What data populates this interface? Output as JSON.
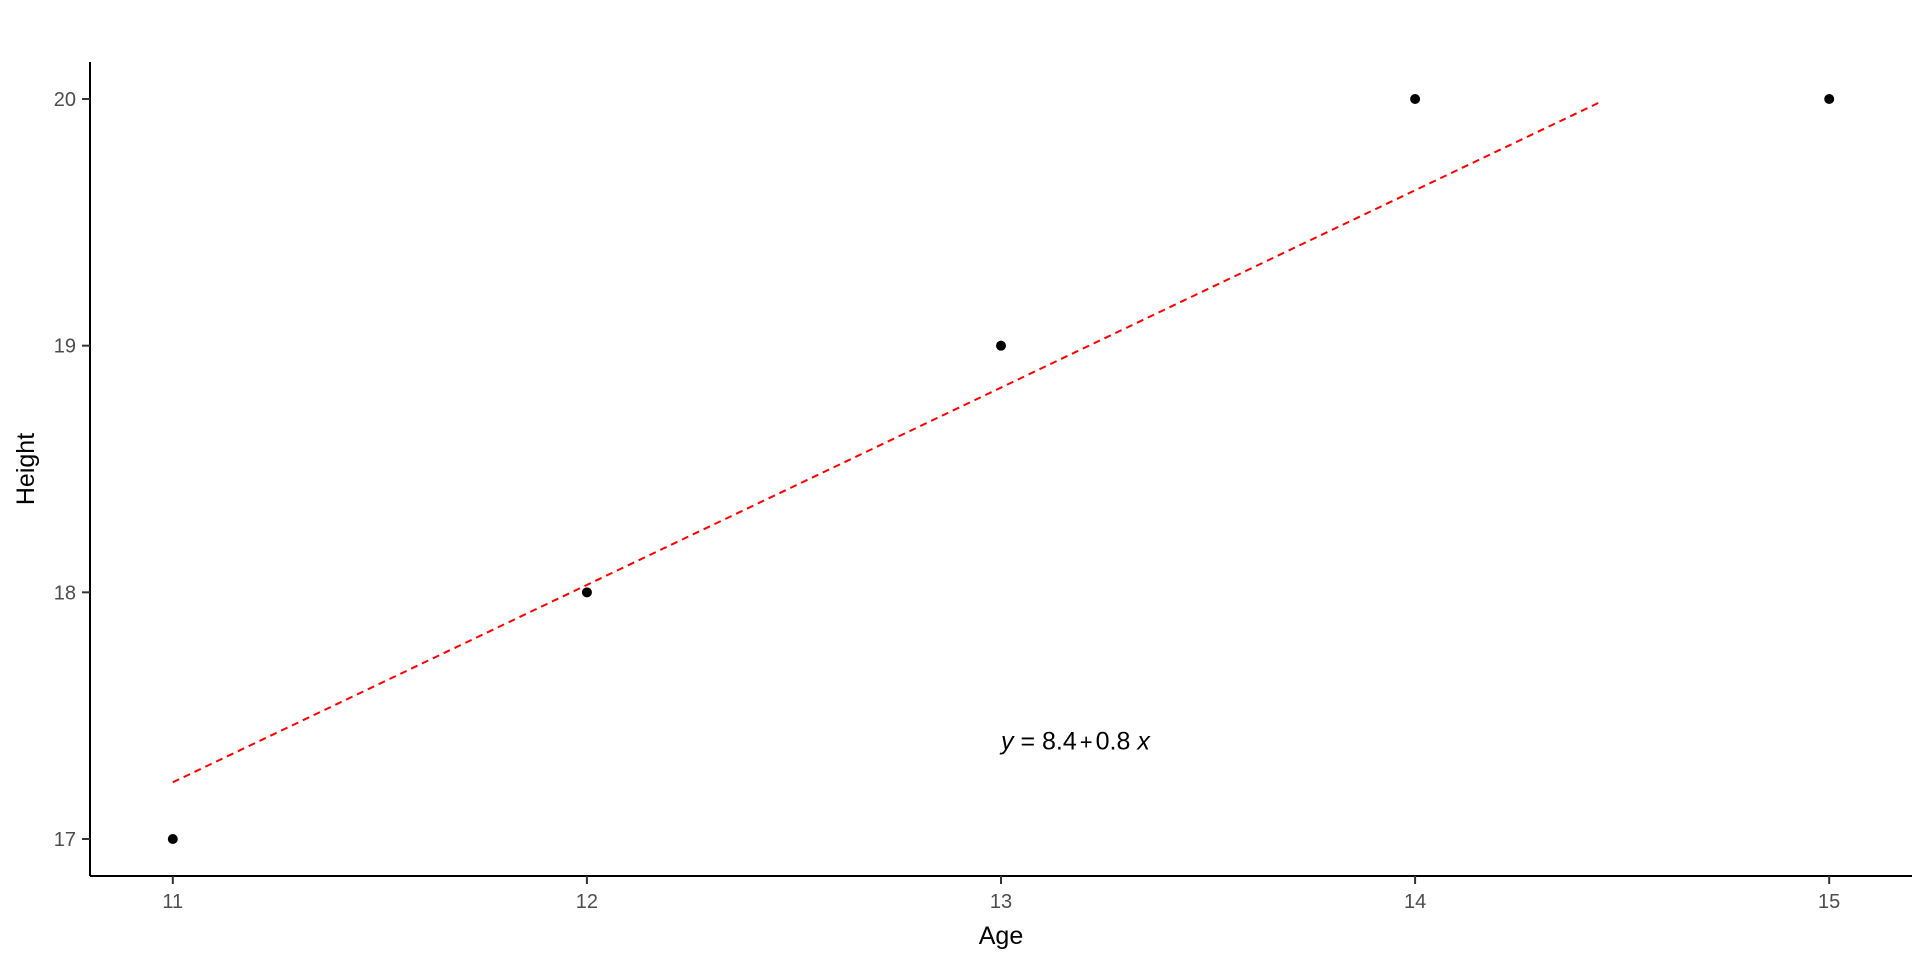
{
  "chart_data": {
    "type": "scatter",
    "title": "",
    "xlabel": "Age",
    "ylabel": "Height",
    "xlim": [
      10.8,
      15.2
    ],
    "ylim": [
      16.85,
      20.15
    ],
    "xticks": [
      11,
      12,
      13,
      14,
      15
    ],
    "yticks": [
      17,
      18,
      19,
      20
    ],
    "grid": false,
    "series": [
      {
        "name": "points",
        "x": [
          11,
          12,
          13,
          14,
          15
        ],
        "y": [
          17,
          18,
          19,
          20,
          20
        ],
        "color": "#000000"
      }
    ],
    "fit_line": {
      "x": [
        11,
        14.45
      ],
      "y": [
        17.23,
        19.99
      ],
      "color": "#ff0000",
      "style": "dashed"
    },
    "annotation": {
      "text_y": "y",
      "text_eq": " = 8.4",
      "text_plus": "+",
      "text_slope": "0.8",
      "text_x": "x",
      "x": 13,
      "y": 17.4
    }
  }
}
